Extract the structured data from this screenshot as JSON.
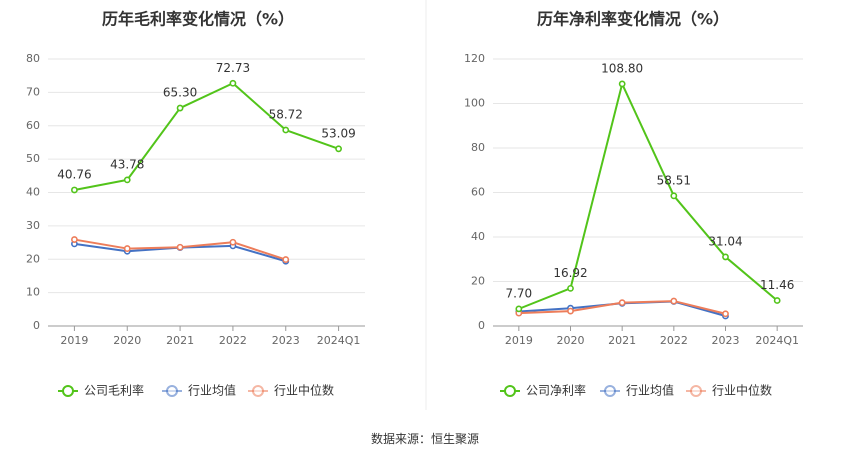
{
  "colors": {
    "company": "#52c41a",
    "industry_avg": "#4472c4",
    "industry_median": "#ed7d5a",
    "axis": "#666666",
    "grid": "#e6e6e6",
    "label": "#333333"
  },
  "source": "数据来源：恒生聚源",
  "chart_data": [
    {
      "type": "line",
      "title": "历年毛利率变化情况（%）",
      "categories": [
        "2019",
        "2020",
        "2021",
        "2022",
        "2023",
        "2024Q1"
      ],
      "ylim": [
        0,
        80
      ],
      "yticks": [
        0,
        10,
        20,
        30,
        40,
        50,
        60,
        70,
        80
      ],
      "grid": true,
      "legend_position": "bottom",
      "series": [
        {
          "name": "公司毛利率",
          "key": "company",
          "values": [
            40.76,
            43.78,
            65.3,
            72.73,
            58.72,
            53.09
          ],
          "labels": [
            "40.76",
            "43.78",
            "65.30",
            "72.73",
            "58.72",
            "53.09"
          ]
        },
        {
          "name": "行业均值",
          "key": "industry_avg",
          "values": [
            24.6,
            22.4,
            23.5,
            24.0,
            19.4,
            null
          ]
        },
        {
          "name": "行业中位数",
          "key": "industry_median",
          "values": [
            25.9,
            23.2,
            23.6,
            25.1,
            19.9,
            null
          ]
        }
      ]
    },
    {
      "type": "line",
      "title": "历年净利率变化情况（%）",
      "categories": [
        "2019",
        "2020",
        "2021",
        "2022",
        "2023",
        "2024Q1"
      ],
      "ylim": [
        0,
        120
      ],
      "yticks": [
        0,
        20,
        40,
        60,
        80,
        100,
        120
      ],
      "grid": true,
      "legend_position": "bottom",
      "series": [
        {
          "name": "公司净利率",
          "key": "company",
          "values": [
            7.7,
            16.92,
            108.8,
            58.51,
            31.04,
            11.46
          ],
          "labels": [
            "7.70",
            "16.92",
            "108.80",
            "58.51",
            "31.04",
            "11.46"
          ]
        },
        {
          "name": "行业均值",
          "key": "industry_avg",
          "values": [
            6.5,
            8.0,
            10.2,
            11.0,
            4.5,
            null
          ]
        },
        {
          "name": "行业中位数",
          "key": "industry_median",
          "values": [
            5.8,
            6.7,
            10.5,
            11.2,
            5.5,
            null
          ]
        }
      ]
    }
  ]
}
